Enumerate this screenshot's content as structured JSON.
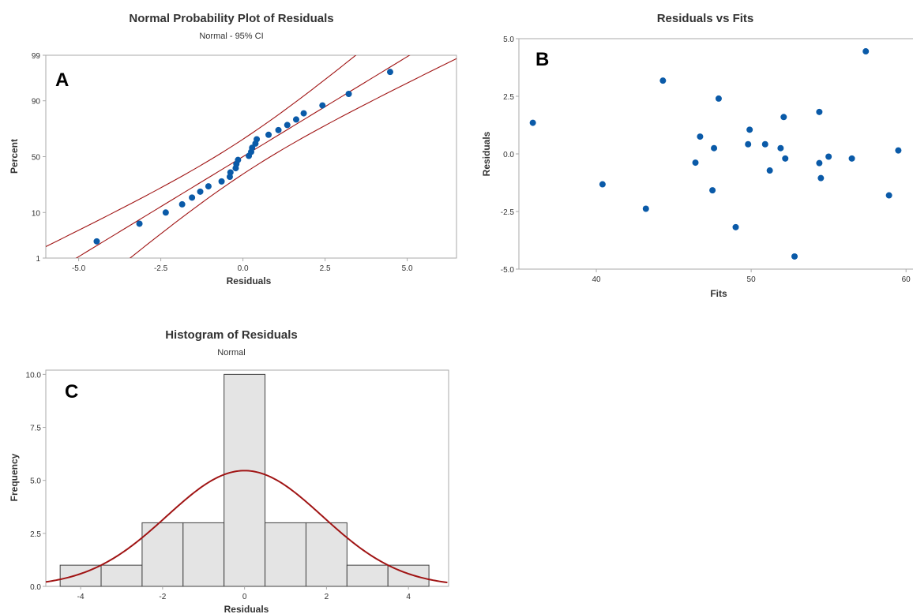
{
  "colors": {
    "point": "#0a5aa8",
    "fit_line": "#a01414",
    "bar_fill": "#e4e4e4",
    "bar_stroke": "#404040",
    "frame": "#aaaaaa"
  },
  "chart_data": [
    {
      "panel_letter": "A",
      "type": "scatter",
      "title": "Normal Probability Plot of Residuals",
      "subtitle": "Normal - 95% CI",
      "xlabel": "Residuals",
      "ylabel": "Percent",
      "xlim": [
        -6.0,
        6.5
      ],
      "ylim_percent": [
        1,
        99
      ],
      "y_scale": "normal-probability",
      "x_ticks": [
        -5.0,
        -2.5,
        0.0,
        2.5,
        5.0
      ],
      "x_tick_labels": [
        "-5.0",
        "-2.5",
        "0.0",
        "2.5",
        "5.0"
      ],
      "y_ticks": [
        1,
        10,
        50,
        90,
        99
      ],
      "y_tick_labels": [
        "1",
        "10",
        "50",
        "90",
        "99"
      ],
      "fit_line": {
        "mean": 0.0,
        "sd": 2.18
      },
      "confidence_band": "95%",
      "points": [
        {
          "x": -4.45,
          "y": 2.6
        },
        {
          "x": -3.15,
          "y": 6.2
        },
        {
          "x": -2.35,
          "y": 10.0
        },
        {
          "x": -1.85,
          "y": 13.7
        },
        {
          "x": -1.55,
          "y": 17.4
        },
        {
          "x": -1.3,
          "y": 21.1
        },
        {
          "x": -1.05,
          "y": 24.8
        },
        {
          "x": -0.65,
          "y": 28.5
        },
        {
          "x": -0.4,
          "y": 32.2
        },
        {
          "x": -0.38,
          "y": 35.9
        },
        {
          "x": -0.22,
          "y": 39.6
        },
        {
          "x": -0.2,
          "y": 43.3
        },
        {
          "x": -0.15,
          "y": 47.0
        },
        {
          "x": 0.18,
          "y": 50.7
        },
        {
          "x": 0.25,
          "y": 54.4
        },
        {
          "x": 0.28,
          "y": 58.1
        },
        {
          "x": 0.38,
          "y": 61.8
        },
        {
          "x": 0.42,
          "y": 65.5
        },
        {
          "x": 0.78,
          "y": 69.2
        },
        {
          "x": 1.08,
          "y": 72.9
        },
        {
          "x": 1.35,
          "y": 76.6
        },
        {
          "x": 1.62,
          "y": 80.3
        },
        {
          "x": 1.85,
          "y": 84.0
        },
        {
          "x": 2.42,
          "y": 88.0
        },
        {
          "x": 3.22,
          "y": 92.5
        },
        {
          "x": 4.48,
          "y": 97.4
        }
      ]
    },
    {
      "panel_letter": "B",
      "type": "scatter",
      "title": "Residuals vs Fits",
      "xlabel": "Fits",
      "ylabel": "Residuals",
      "xlim": [
        35,
        60.5
      ],
      "ylim": [
        -5.0,
        5.0
      ],
      "x_ticks": [
        40,
        50,
        60
      ],
      "x_tick_labels": [
        "40",
        "50",
        "60"
      ],
      "y_ticks": [
        -5.0,
        -2.5,
        0.0,
        2.5,
        5.0
      ],
      "y_tick_labels": [
        "-5.0",
        "-2.5",
        "0.0",
        "2.5",
        "5.0"
      ],
      "points": [
        {
          "x": 35.9,
          "y": 1.35
        },
        {
          "x": 40.4,
          "y": -1.32
        },
        {
          "x": 43.2,
          "y": -2.38
        },
        {
          "x": 44.3,
          "y": 3.18
        },
        {
          "x": 46.4,
          "y": -0.38
        },
        {
          "x": 46.7,
          "y": 0.75
        },
        {
          "x": 47.5,
          "y": -1.58
        },
        {
          "x": 47.6,
          "y": 0.25
        },
        {
          "x": 47.9,
          "y": 2.4
        },
        {
          "x": 49.0,
          "y": -3.18
        },
        {
          "x": 49.8,
          "y": 0.42
        },
        {
          "x": 49.9,
          "y": 1.05
        },
        {
          "x": 50.9,
          "y": 0.42
        },
        {
          "x": 51.2,
          "y": -0.72
        },
        {
          "x": 51.9,
          "y": 0.25
        },
        {
          "x": 52.1,
          "y": 1.6
        },
        {
          "x": 52.2,
          "y": -0.2
        },
        {
          "x": 52.8,
          "y": -4.45
        },
        {
          "x": 54.4,
          "y": 1.82
        },
        {
          "x": 54.4,
          "y": -0.4
        },
        {
          "x": 54.5,
          "y": -1.05
        },
        {
          "x": 55.0,
          "y": -0.12
        },
        {
          "x": 56.5,
          "y": -0.2
        },
        {
          "x": 57.4,
          "y": 4.45
        },
        {
          "x": 58.9,
          "y": -1.8
        },
        {
          "x": 59.5,
          "y": 0.15
        }
      ]
    },
    {
      "panel_letter": "C",
      "type": "bar",
      "title": "Histogram of Residuals",
      "subtitle": "Normal",
      "xlabel": "Residuals",
      "ylabel": "Frequency",
      "xlim": [
        -4.85,
        4.98
      ],
      "ylim": [
        0,
        10.2
      ],
      "x_ticks": [
        -4,
        -2,
        0,
        2,
        4
      ],
      "x_tick_labels": [
        "-4",
        "-2",
        "0",
        "2",
        "4"
      ],
      "y_ticks": [
        0.0,
        2.5,
        5.0,
        7.5,
        10.0
      ],
      "y_tick_labels": [
        "0.0",
        "2.5",
        "5.0",
        "7.5",
        "10.0"
      ],
      "bin_width": 1,
      "bins": [
        {
          "center": -4,
          "count": 1
        },
        {
          "center": -3,
          "count": 1
        },
        {
          "center": -2,
          "count": 3
        },
        {
          "center": -1,
          "count": 3
        },
        {
          "center": 0,
          "count": 10
        },
        {
          "center": 1,
          "count": 3
        },
        {
          "center": 2,
          "count": 3
        },
        {
          "center": 3,
          "count": 1
        },
        {
          "center": 4,
          "count": 1
        }
      ],
      "normal_fit": {
        "mean": 0.0,
        "sd": 1.9,
        "n": 26
      }
    }
  ]
}
